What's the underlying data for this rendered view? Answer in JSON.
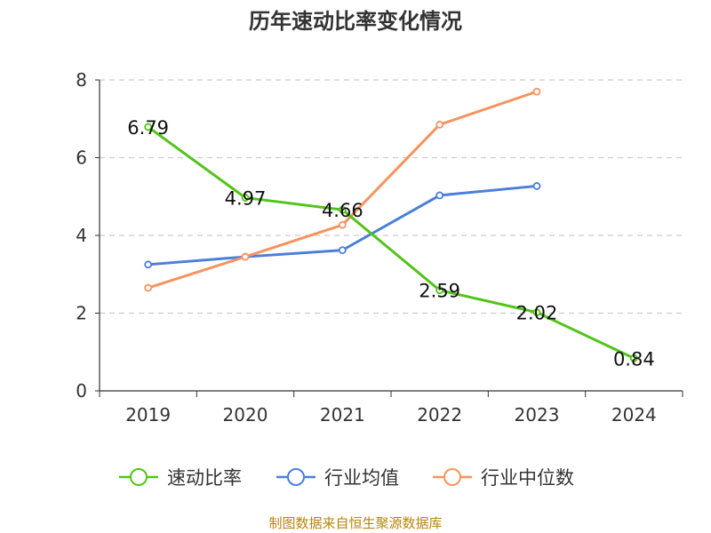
{
  "chart_data": {
    "type": "line",
    "title": "历年速动比率变化情况",
    "categories": [
      "2019",
      "2020",
      "2021",
      "2022",
      "2023",
      "2024"
    ],
    "ylim": [
      0,
      8
    ],
    "yticks": [
      "0",
      "2",
      "4",
      "6",
      "8"
    ],
    "grid": true,
    "legend_position": "bottom",
    "series": [
      {
        "name": "速动比率",
        "color": "#52c41a",
        "values": [
          6.79,
          4.97,
          4.66,
          2.59,
          2.02,
          0.84
        ],
        "data_labels": [
          "6.79",
          "4.97",
          "4.66",
          "2.59",
          "2.02",
          "0.84"
        ]
      },
      {
        "name": "行业均值",
        "color": "#4a7fdb",
        "values": [
          3.25,
          3.45,
          3.62,
          5.03,
          5.27,
          null
        ]
      },
      {
        "name": "行业中位数",
        "color": "#f7935e",
        "values": [
          2.65,
          3.45,
          4.27,
          6.85,
          7.7,
          null
        ]
      }
    ]
  },
  "source_note": "制图数据来自恒生聚源数据库"
}
